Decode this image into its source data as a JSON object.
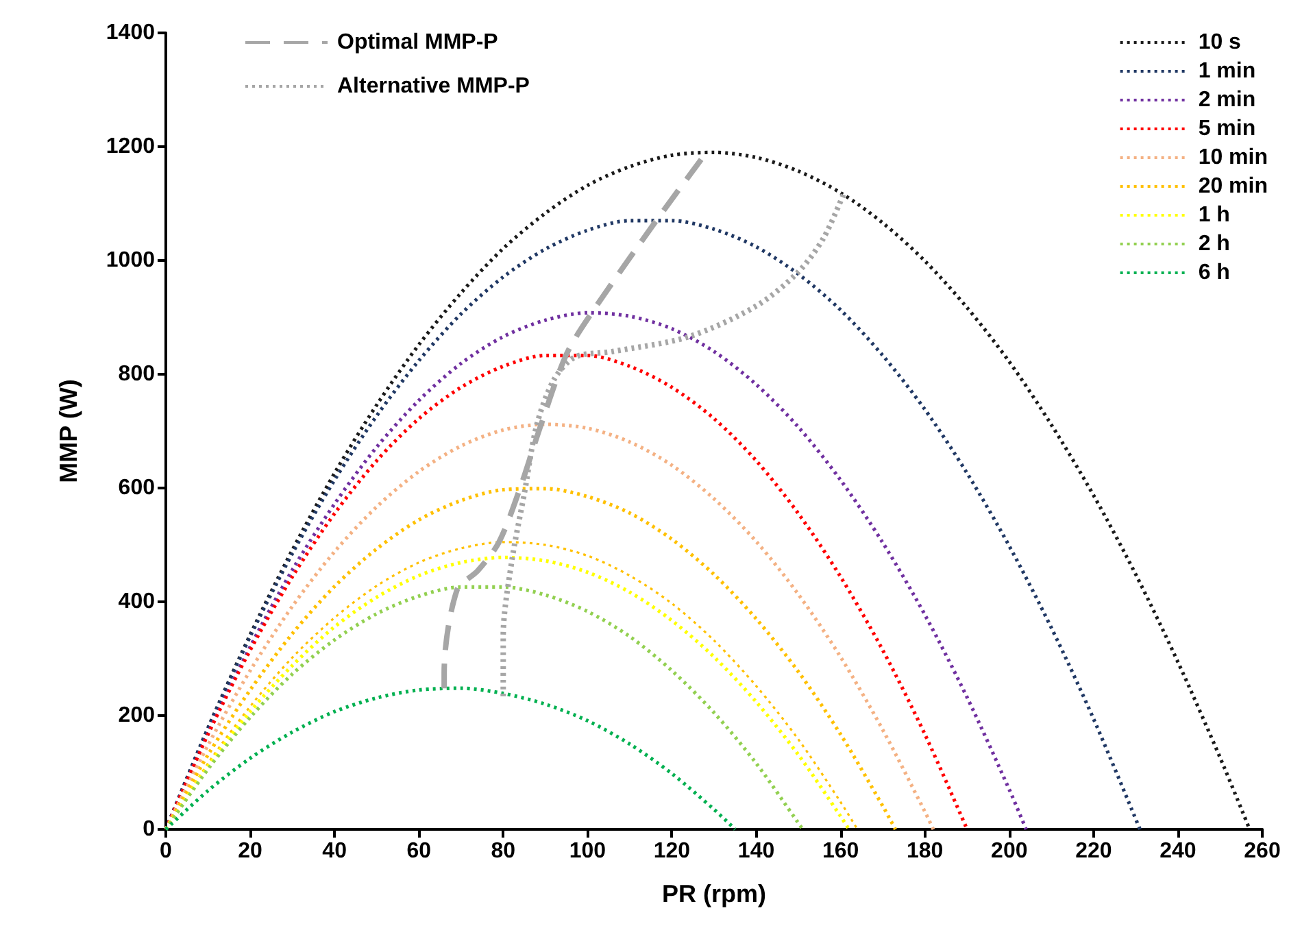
{
  "chart_data": {
    "type": "line",
    "xlabel": "PR (rpm)",
    "ylabel": "MMP (W)",
    "xlim": [
      0,
      260
    ],
    "xticks": [
      0,
      20,
      40,
      60,
      80,
      100,
      120,
      140,
      160,
      180,
      200,
      220,
      240,
      260
    ],
    "ylim": [
      0,
      1400
    ],
    "yticks": [
      0,
      200,
      400,
      600,
      800,
      1000,
      1200,
      1400
    ],
    "grid": false,
    "legend": "top right",
    "marker": "none",
    "line_style": "dotted",
    "series": [
      {
        "name": "10 s",
        "color": "#1a1a1a",
        "x": [
          0,
          10,
          20,
          30,
          40,
          50,
          60,
          70,
          80,
          90,
          100,
          110,
          120,
          130,
          140,
          150,
          160,
          170,
          180,
          190,
          200,
          210,
          220,
          230,
          240,
          250,
          257
        ],
        "values": [
          0,
          178,
          342,
          491,
          626,
          746,
          852,
          943,
          1021,
          1083,
          1132,
          1165,
          1185,
          1190,
          1181,
          1157,
          1119,
          1066,
          999,
          917,
          822,
          711,
          587,
          448,
          294,
          126,
          0
        ]
      },
      {
        "name": "1 min",
        "color": "#203864",
        "x": [
          0,
          10,
          20,
          30,
          40,
          50,
          60,
          70,
          80,
          90,
          100,
          110,
          120,
          130,
          140,
          150,
          160,
          170,
          180,
          190,
          200,
          210,
          220,
          231
        ],
        "values": [
          0,
          178,
          339,
          485,
          614,
          727,
          824,
          906,
          971,
          1020,
          1053,
          1070,
          1070,
          1055,
          1024,
          976,
          913,
          833,
          738,
          626,
          498,
          354,
          194,
          0
        ]
      },
      {
        "name": "2 min",
        "color": "#7030a0",
        "x": [
          0,
          10,
          20,
          30,
          40,
          50,
          60,
          70,
          80,
          90,
          100,
          110,
          120,
          130,
          140,
          150,
          160,
          170,
          180,
          190,
          200,
          204
        ],
        "values": [
          0,
          169,
          321,
          456,
          572,
          672,
          754,
          819,
          866,
          895,
          908,
          902,
          880,
          840,
          782,
          707,
          614,
          504,
          377,
          232,
          70,
          0
        ]
      },
      {
        "name": "5 min",
        "color": "#ff0000",
        "x": [
          0,
          10,
          20,
          30,
          40,
          50,
          60,
          70,
          80,
          90,
          100,
          110,
          120,
          130,
          140,
          150,
          160,
          170,
          180,
          190
        ],
        "values": [
          0,
          167,
          315,
          444,
          555,
          648,
          722,
          777,
          814,
          833,
          833,
          814,
          777,
          722,
          648,
          555,
          444,
          315,
          167,
          0
        ]
      },
      {
        "name": "10 min",
        "color": "#f4b183",
        "x": [
          0,
          10,
          20,
          30,
          40,
          50,
          60,
          70,
          80,
          90,
          100,
          110,
          120,
          130,
          140,
          150,
          160,
          170,
          180,
          182
        ],
        "values": [
          0,
          148,
          279,
          392,
          488,
          567,
          629,
          674,
          702,
          712,
          705,
          681,
          640,
          581,
          506,
          413,
          303,
          175,
          31,
          0
        ]
      },
      {
        "name": "20 min",
        "color": "#ffc000",
        "x": [
          0,
          10,
          20,
          30,
          40,
          50,
          60,
          70,
          80,
          90,
          100,
          110,
          120,
          130,
          140,
          150,
          160,
          170,
          173
        ],
        "values": [
          0,
          131,
          245,
          344,
          427,
          493,
          544,
          578,
          597,
          599,
          585,
          556,
          510,
          448,
          370,
          277,
          167,
          41,
          0
        ]
      },
      {
        "color": "#ffc000",
        "x": [
          0,
          10,
          20,
          30,
          40,
          50,
          60,
          70,
          80,
          90,
          100,
          110,
          120,
          130,
          140,
          150,
          160,
          164
        ],
        "values": [
          0,
          116,
          216,
          302,
          372,
          428,
          469,
          494,
          505,
          500,
          481,
          446,
          397,
          332,
          252,
          158,
          48,
          0
        ]
      },
      {
        "name": "1 h",
        "color": "#ffff00",
        "x": [
          0,
          10,
          20,
          30,
          40,
          50,
          60,
          70,
          80,
          90,
          100,
          110,
          120,
          130,
          140,
          150,
          160,
          162
        ],
        "values": [
          0,
          111,
          207,
          288,
          356,
          408,
          446,
          469,
          478,
          472,
          452,
          417,
          367,
          303,
          224,
          131,
          23,
          0
        ]
      },
      {
        "name": "2 h",
        "color": "#92d050",
        "x": [
          0,
          10,
          20,
          30,
          40,
          50,
          60,
          70,
          80,
          90,
          100,
          110,
          120,
          130,
          140,
          150,
          151
        ],
        "values": [
          0,
          106,
          197,
          273,
          333,
          379,
          410,
          426,
          426,
          412,
          383,
          339,
          279,
          205,
          116,
          11,
          0
        ]
      },
      {
        "name": "6 h",
        "color": "#00b050",
        "x": [
          0,
          10,
          20,
          30,
          40,
          50,
          60,
          70,
          80,
          90,
          100,
          110,
          120,
          130,
          135
        ],
        "values": [
          0,
          68,
          125,
          171,
          207,
          231,
          245,
          248,
          239,
          220,
          191,
          150,
          98,
          35,
          0
        ]
      },
      {
        "name": "Optimal MMP-P",
        "color": "#a6a6a6",
        "line_style": "dashed",
        "x": [
          66,
          66,
          69,
          74,
          79,
          84,
          89,
          95,
          101,
          116,
          127
        ],
        "values": [
          248,
          275,
          420,
          455,
          505,
          600,
          712,
          835,
          908,
          1067,
          1178
        ]
      },
      {
        "name": "Alternative MMP-P",
        "color": "#a6a6a6",
        "line_style": "dotted",
        "x": [
          80,
          80,
          82,
          85,
          88,
          92,
          97,
          106,
          124,
          140,
          150,
          156,
          161
        ],
        "values": [
          234,
          340,
          470,
          590,
          712,
          790,
          830,
          840,
          866,
          920,
          980,
          1040,
          1122
        ]
      }
    ]
  }
}
